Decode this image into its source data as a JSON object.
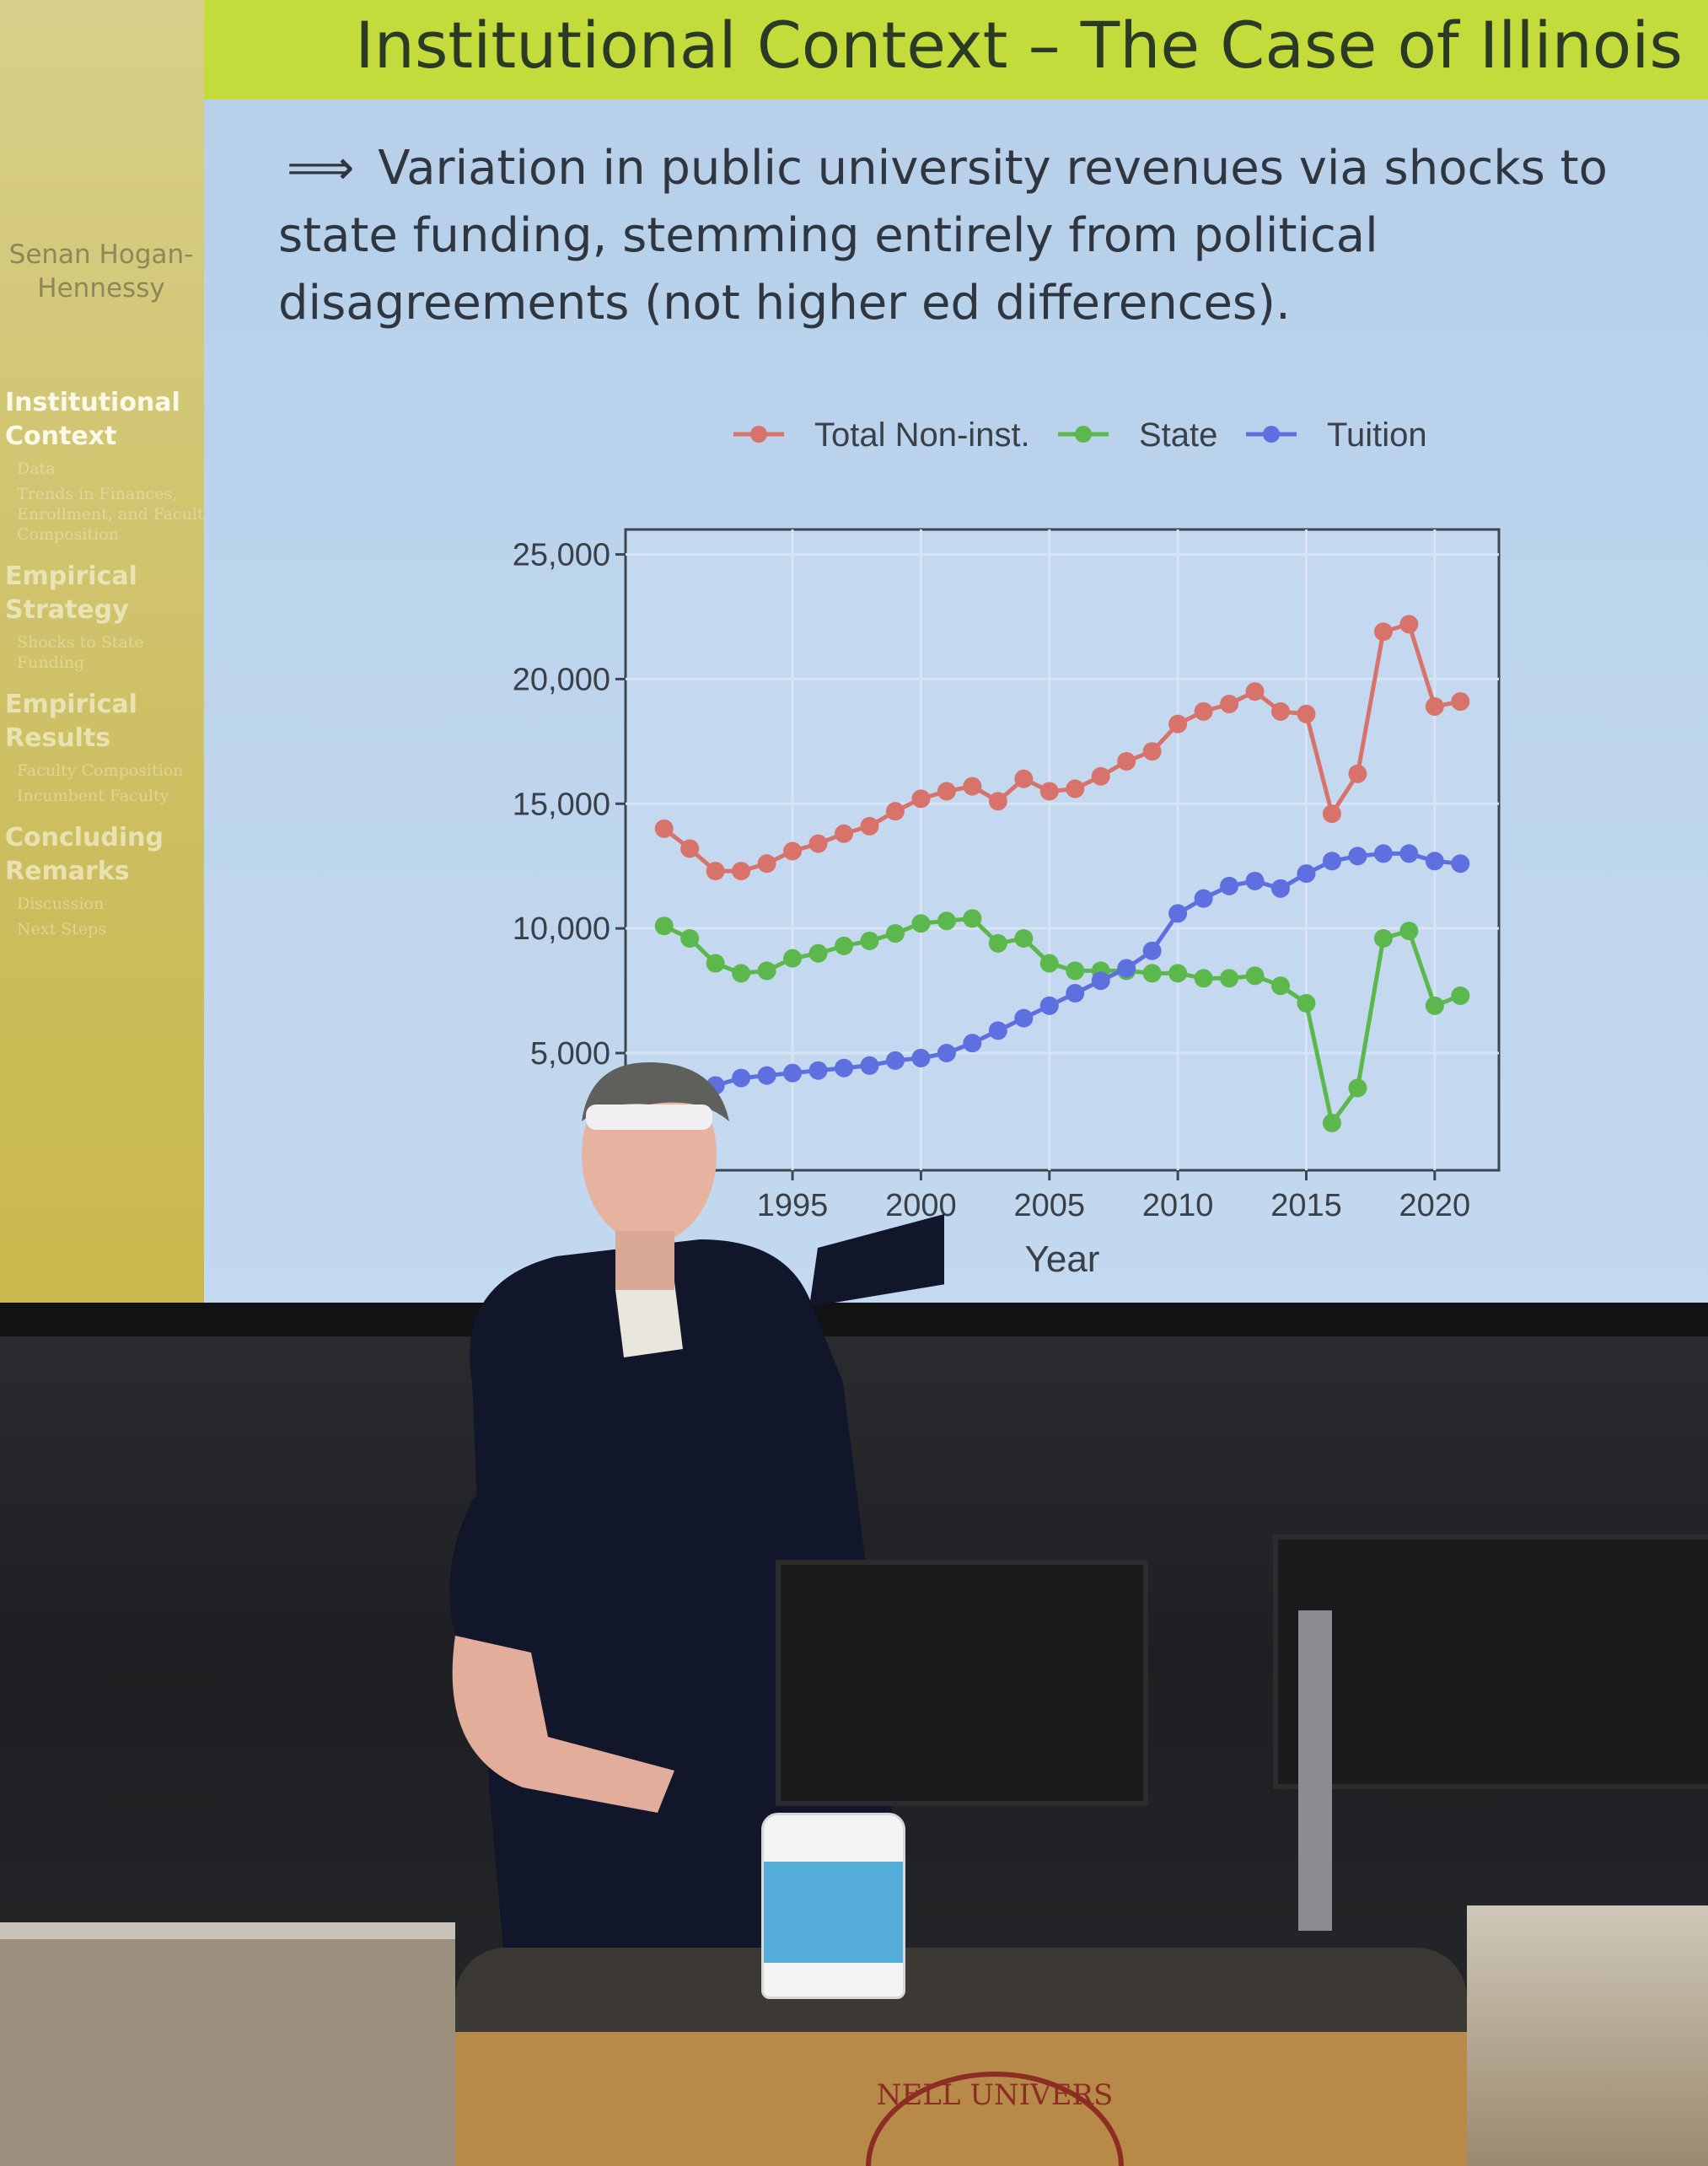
{
  "slide": {
    "title": "Institutional Context – The Case of Illinois",
    "bullet_arrow": "⟹",
    "bullet_text": "Variation in public university revenues via shocks to state funding, stemming entirely from political disagreements (not higher ed differences)."
  },
  "sidebar": {
    "author": "Senan Hogan-Hennessy",
    "sections": [
      {
        "label": "Institutional Context",
        "active": true,
        "subsections": [
          "Data",
          "Trends in Finances, Enrollment, and Faculty Composition"
        ]
      },
      {
        "label": "Empirical Strategy",
        "active": false,
        "subsections": [
          "Shocks to State Funding"
        ]
      },
      {
        "label": "Empirical Results",
        "active": false,
        "subsections": [
          "Faculty Composition",
          "Incumbent Faculty"
        ]
      },
      {
        "label": "Concluding Remarks",
        "active": false,
        "subsections": [
          "Discussion",
          "Next Steps"
        ]
      }
    ]
  },
  "footer": {
    "university_seal_text": "NELL UNIVERS"
  },
  "chart_data": {
    "type": "line",
    "title": "",
    "xlabel": "Year",
    "ylabel": "",
    "legend_position": "top",
    "grid": true,
    "xlim": [
      1988.5,
      2022.5
    ],
    "ylim": [
      300,
      26000
    ],
    "y_ticks": [
      5000,
      10000,
      15000,
      20000,
      25000
    ],
    "y_tick_labels": [
      "5,000",
      "10,000",
      "15,000",
      "20,000",
      "25,000"
    ],
    "x_ticks": [
      1995,
      2000,
      2005,
      2010,
      2015,
      2020
    ],
    "x_tick_labels": [
      "1995",
      "2000",
      "2005",
      "2010",
      "2015",
      "2020"
    ],
    "x": [
      1990,
      1991,
      1992,
      1993,
      1994,
      1995,
      1996,
      1997,
      1998,
      1999,
      2000,
      2001,
      2002,
      2003,
      2004,
      2005,
      2006,
      2007,
      2008,
      2009,
      2010,
      2011,
      2012,
      2013,
      2014,
      2015,
      2016,
      2017,
      2018,
      2019,
      2020,
      2021
    ],
    "series": [
      {
        "name": "Total Non-inst.",
        "color": "#d8736b",
        "values": [
          14000,
          13200,
          12300,
          12300,
          12600,
          13100,
          13400,
          13800,
          14100,
          14700,
          15200,
          15500,
          15700,
          15100,
          16000,
          15500,
          15600,
          16100,
          16700,
          17100,
          18200,
          18700,
          19000,
          19500,
          18700,
          18600,
          14600,
          16200,
          21900,
          22200,
          18900,
          19100
        ]
      },
      {
        "name": "State",
        "color": "#5cb84c",
        "values": [
          10100,
          9600,
          8600,
          8200,
          8300,
          8800,
          9000,
          9300,
          9500,
          9800,
          10200,
          10300,
          10400,
          9400,
          9600,
          8600,
          8300,
          8300,
          8300,
          8200,
          8200,
          8000,
          8000,
          8100,
          7700,
          7000,
          2200,
          3600,
          9600,
          9900,
          6900,
          7300
        ]
      },
      {
        "name": "Tuition",
        "color": "#5e6fe0",
        "values": [
          3300,
          3500,
          3700,
          4000,
          4100,
          4200,
          4300,
          4400,
          4500,
          4700,
          4800,
          5000,
          5400,
          5900,
          6400,
          6900,
          7400,
          7900,
          8400,
          9100,
          10600,
          11200,
          11700,
          11900,
          11600,
          12200,
          12700,
          12900,
          13000,
          13000,
          12700,
          12600
        ]
      }
    ]
  }
}
